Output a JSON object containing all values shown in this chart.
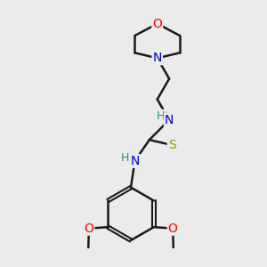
{
  "background_color": "#ebebeb",
  "bond_color": "#1a1a1a",
  "atom_colors": {
    "O": "#ff0000",
    "N": "#0000cc",
    "S": "#999900",
    "H_color": "#2e8b8b"
  },
  "figsize": [
    3.0,
    3.0
  ],
  "dpi": 100
}
